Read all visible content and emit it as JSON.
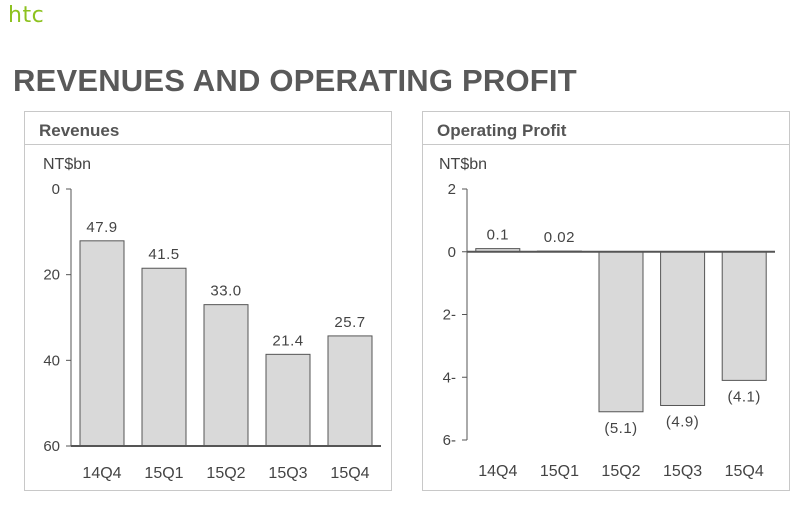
{
  "logo": "htc",
  "page_title": "REVENUES AND OPERATING PROFIT",
  "colors": {
    "bar_fill": "#d9d9d9",
    "bar_stroke": "#555555",
    "axis": "#555555",
    "logo": "#8dc21f"
  },
  "chart_data": [
    {
      "type": "bar",
      "title": "Revenues",
      "ylabel": "NT$bn",
      "categories": [
        "14Q4",
        "15Q1",
        "15Q2",
        "15Q3",
        "15Q4"
      ],
      "values": [
        47.9,
        41.5,
        33.0,
        21.4,
        25.7
      ],
      "value_labels": [
        "47.9",
        "41.5",
        "33.0",
        "21.4",
        "25.7"
      ],
      "yticks": [
        "0",
        "20",
        "40",
        "60"
      ],
      "ylim": [
        0,
        60
      ],
      "grid": false
    },
    {
      "type": "bar",
      "title": "Operating Profit",
      "ylabel": "NT$bn",
      "categories": [
        "14Q4",
        "15Q1",
        "15Q2",
        "15Q3",
        "15Q4"
      ],
      "values": [
        0.1,
        0.02,
        -5.1,
        -4.9,
        -4.1
      ],
      "value_labels": [
        "0.1",
        "0.02",
        "(5.1)",
        "(4.9)",
        "(4.1)"
      ],
      "yticks": [
        "2",
        "0",
        "2-",
        "4-",
        "6-"
      ],
      "ylim": [
        -6,
        2
      ],
      "grid": false
    }
  ]
}
